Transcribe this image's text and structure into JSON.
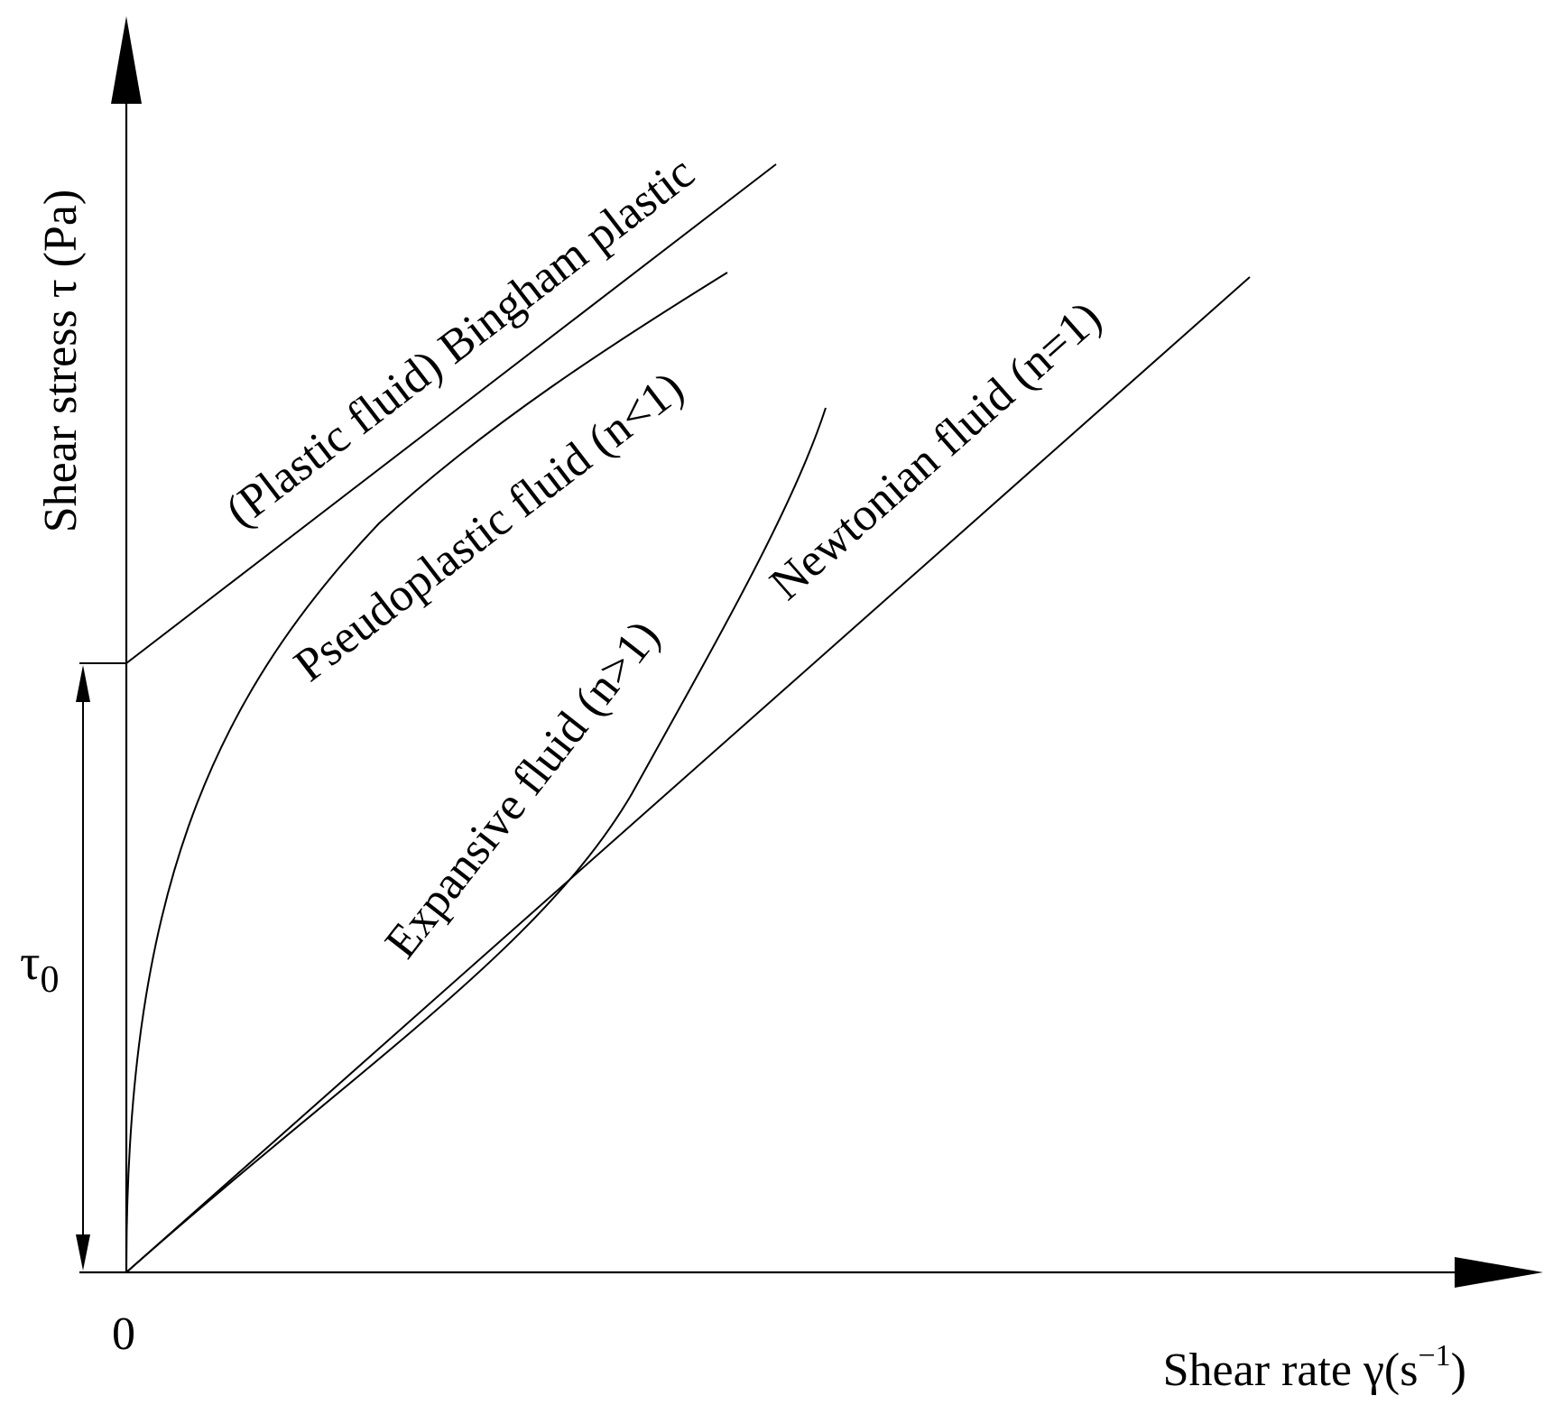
{
  "diagram": {
    "y_axis_label": "Shear stress τ (Pa)",
    "x_axis_label_main": "Shear rate γ(s",
    "x_axis_label_exp": "−1",
    "x_axis_label_close": ")",
    "origin_label": "0",
    "yield_label_main": "τ",
    "yield_label_sub": "0",
    "curves": {
      "bingham": "(Plastic fluid) Bingham plastic",
      "pseudoplastic": "Pseudoplastic fluid (n<1)",
      "expansive": "Expansive fluid (n>1)",
      "newtonian": "Newtonian fluid (n=1)"
    },
    "color": "#000000"
  }
}
